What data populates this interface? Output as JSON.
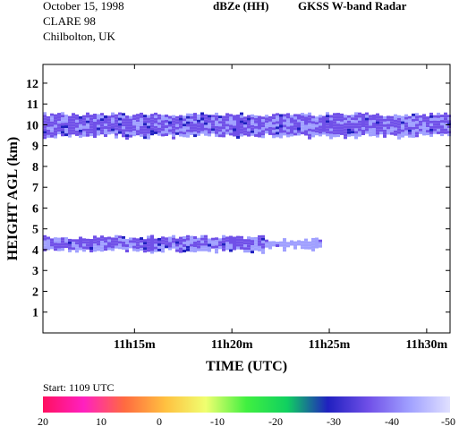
{
  "header": {
    "date": "October 15, 1998",
    "campaign": "CLARE 98",
    "location": "Chilbolton, UK",
    "product": "dBZe (HH)",
    "instrument": "GKSS  W-band Radar"
  },
  "footer": {
    "start_label": "Start: 1109 UTC"
  },
  "chart_data": {
    "type": "heatmap",
    "xlabel": "TIME (UTC)",
    "ylabel": "HEIGHT AGL (km)",
    "xlim_minutes_after_11h": [
      10.3,
      31.2
    ],
    "x_ticks": [
      {
        "minute": 15,
        "label": "11h15m"
      },
      {
        "minute": 20,
        "label": "11h20m"
      },
      {
        "minute": 25,
        "label": "11h25m"
      },
      {
        "minute": 30,
        "label": "11h30m"
      }
    ],
    "ylim": [
      0,
      12.9
    ],
    "y_ticks": [
      1,
      2,
      3,
      4,
      5,
      6,
      7,
      8,
      9,
      10,
      11,
      12
    ],
    "colorbar": {
      "unit": "dBZe",
      "range": [
        20,
        -50
      ],
      "ticks": [
        "20",
        "10",
        "0",
        "-10",
        "-20",
        "-30",
        "-40",
        "-50"
      ],
      "colors": [
        "#ff1060",
        "#ff20c0",
        "#ff6a40",
        "#ffc040",
        "#f0ff70",
        "#40f040",
        "#10d060",
        "#2020c0",
        "#7050e8",
        "#a0a0ff",
        "#e0e0ff"
      ]
    },
    "layers": [
      {
        "name": "upper",
        "start_min": 10.3,
        "end_min": 31.2,
        "base_km": 9.5,
        "top_km": 10.5,
        "typical_dbze": -38,
        "max_dbze": -30
      },
      {
        "name": "lower",
        "start_min": 10.3,
        "end_min": 24.5,
        "base_km": 4.0,
        "top_km": 4.6,
        "typical_dbze": -38,
        "max_dbze": -32
      }
    ]
  }
}
